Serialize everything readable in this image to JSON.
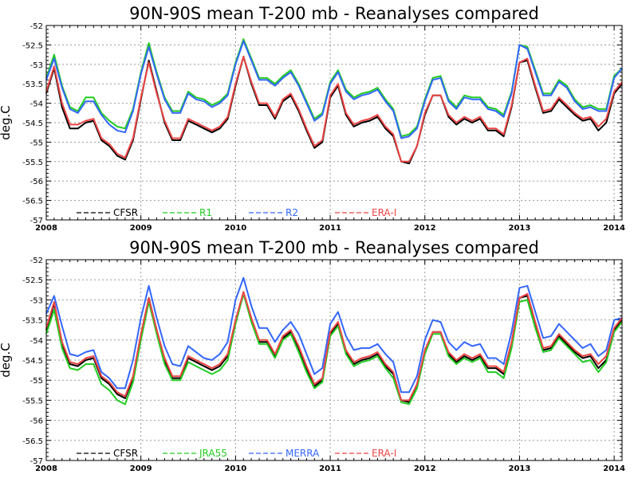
{
  "chart_data": [
    {
      "type": "line",
      "title": "90N-90S mean T-200 mb - Reanalyses compared",
      "xlabel": "",
      "ylabel": "deg.C",
      "xlim": [
        2008.0,
        2014.0833
      ],
      "ylim": [
        -57,
        -52
      ],
      "xticks": [
        "2008",
        "2009",
        "2010",
        "2011",
        "2012",
        "2013",
        "2014"
      ],
      "yticks": [
        "-52",
        "-52.5",
        "-53",
        "-53.5",
        "-54",
        "-54.5",
        "-55",
        "-55.5",
        "-56",
        "-56.5",
        "-57"
      ],
      "grid": true,
      "legend": "bottom-inside",
      "x": [
        2008.0,
        2008.0833,
        2008.1667,
        2008.25,
        2008.3333,
        2008.4167,
        2008.5,
        2008.5833,
        2008.6667,
        2008.75,
        2008.8333,
        2008.9167,
        2009.0,
        2009.0833,
        2009.1667,
        2009.25,
        2009.3333,
        2009.4167,
        2009.5,
        2009.5833,
        2009.6667,
        2009.75,
        2009.8333,
        2009.9167,
        2010.0,
        2010.0833,
        2010.1667,
        2010.25,
        2010.3333,
        2010.4167,
        2010.5,
        2010.5833,
        2010.6667,
        2010.75,
        2010.8333,
        2010.9167,
        2011.0,
        2011.0833,
        2011.1667,
        2011.25,
        2011.3333,
        2011.4167,
        2011.5,
        2011.5833,
        2011.6667,
        2011.75,
        2011.8333,
        2011.9167,
        2012.0,
        2012.0833,
        2012.1667,
        2012.25,
        2012.3333,
        2012.4167,
        2012.5,
        2012.5833,
        2012.6667,
        2012.75,
        2012.8333,
        2012.9167,
        2013.0,
        2013.0833,
        2013.1667,
        2013.25,
        2013.3333,
        2013.4167,
        2013.5,
        2013.5833,
        2013.6667,
        2013.75,
        2013.8333,
        2013.9167,
        2014.0,
        2014.0833
      ],
      "series": [
        {
          "name": "CFSR",
          "color": "#000000",
          "values": [
            -53.75,
            -53.1,
            -54.1,
            -54.65,
            -54.65,
            -54.5,
            -54.45,
            -54.95,
            -55.1,
            -55.35,
            -55.45,
            -54.95,
            -53.9,
            -52.9,
            -53.7,
            -54.5,
            -54.95,
            -54.95,
            -54.45,
            -54.55,
            -54.65,
            -54.75,
            -54.65,
            -54.4,
            -53.55,
            -52.8,
            -53.5,
            -54.05,
            -54.05,
            -54.4,
            -53.95,
            -53.8,
            -54.2,
            -54.7,
            -55.15,
            -55.0,
            -53.85,
            -53.55,
            -54.3,
            -54.6,
            -54.5,
            -54.45,
            -54.35,
            -54.65,
            -54.85,
            -55.5,
            -55.55,
            -55.1,
            -54.3,
            -53.8,
            -53.8,
            -54.35,
            -54.55,
            -54.4,
            -54.5,
            -54.4,
            -54.7,
            -54.7,
            -54.85,
            -54.1,
            -52.95,
            -52.9,
            -53.6,
            -54.25,
            -54.2,
            -53.9,
            -54.1,
            -54.3,
            -54.45,
            -54.4,
            -54.7,
            -54.5,
            -53.75,
            -53.5
          ]
        },
        {
          "name": "R1",
          "color": "#22cc22",
          "values": [
            -53.35,
            -52.75,
            -53.55,
            -54.1,
            -54.2,
            -53.85,
            -53.85,
            -54.25,
            -54.45,
            -54.6,
            -54.65,
            -54.15,
            -53.2,
            -52.45,
            -53.2,
            -53.85,
            -54.2,
            -54.2,
            -53.7,
            -53.85,
            -53.9,
            -54.05,
            -53.95,
            -53.75,
            -52.95,
            -52.35,
            -52.85,
            -53.35,
            -53.35,
            -53.5,
            -53.3,
            -53.15,
            -53.5,
            -53.95,
            -54.4,
            -54.25,
            -53.45,
            -53.15,
            -53.65,
            -53.85,
            -53.75,
            -53.7,
            -53.6,
            -53.9,
            -54.15,
            -54.85,
            -54.8,
            -54.6,
            -53.9,
            -53.35,
            -53.3,
            -53.9,
            -54.1,
            -53.8,
            -53.85,
            -53.85,
            -54.1,
            -54.15,
            -54.3,
            -53.7,
            -52.5,
            -52.55,
            -53.15,
            -53.75,
            -53.75,
            -53.4,
            -53.55,
            -53.9,
            -54.1,
            -54.05,
            -54.15,
            -54.15,
            -53.3,
            -53.1
          ]
        },
        {
          "name": "R2",
          "color": "#3366ff",
          "values": [
            -53.4,
            -52.85,
            -53.6,
            -54.15,
            -54.25,
            -53.95,
            -53.95,
            -54.3,
            -54.55,
            -54.7,
            -54.75,
            -54.2,
            -53.25,
            -52.55,
            -53.25,
            -53.9,
            -54.25,
            -54.25,
            -53.75,
            -53.9,
            -53.95,
            -54.1,
            -54.0,
            -53.8,
            -53.0,
            -52.4,
            -52.9,
            -53.4,
            -53.4,
            -53.55,
            -53.35,
            -53.2,
            -53.55,
            -54.0,
            -54.45,
            -54.3,
            -53.5,
            -53.2,
            -53.7,
            -53.9,
            -53.8,
            -53.75,
            -53.65,
            -53.95,
            -54.2,
            -54.9,
            -54.85,
            -54.65,
            -53.95,
            -53.4,
            -53.35,
            -53.95,
            -54.15,
            -53.85,
            -53.9,
            -53.9,
            -54.15,
            -54.2,
            -54.35,
            -53.75,
            -52.5,
            -52.6,
            -53.2,
            -53.8,
            -53.8,
            -53.45,
            -53.6,
            -53.95,
            -54.15,
            -54.1,
            -54.2,
            -54.2,
            -53.35,
            -53.1
          ]
        },
        {
          "name": "ERA-I",
          "color": "#ee4444",
          "values": [
            -53.7,
            -53.05,
            -54.0,
            -54.55,
            -54.55,
            -54.45,
            -54.4,
            -54.9,
            -55.05,
            -55.3,
            -55.4,
            -54.9,
            -53.85,
            -52.95,
            -53.75,
            -54.45,
            -54.9,
            -54.9,
            -54.4,
            -54.5,
            -54.6,
            -54.7,
            -54.6,
            -54.35,
            -53.5,
            -52.8,
            -53.45,
            -54.0,
            -54.0,
            -54.35,
            -53.9,
            -53.75,
            -54.15,
            -54.65,
            -55.1,
            -54.95,
            -53.8,
            -53.5,
            -54.25,
            -54.55,
            -54.45,
            -54.4,
            -54.3,
            -54.6,
            -54.8,
            -55.5,
            -55.5,
            -55.1,
            -54.25,
            -53.8,
            -53.8,
            -54.3,
            -54.5,
            -54.35,
            -54.45,
            -54.35,
            -54.65,
            -54.65,
            -54.8,
            -54.05,
            -52.95,
            -52.85,
            -53.55,
            -54.2,
            -54.15,
            -53.85,
            -54.05,
            -54.25,
            -54.4,
            -54.35,
            -54.6,
            -54.4,
            -53.7,
            -53.45
          ]
        }
      ]
    },
    {
      "type": "line",
      "title": "90N-90S mean T-200 mb - Reanalyses compared",
      "xlabel": "",
      "ylabel": "deg.C",
      "xlim": [
        2008.0,
        2014.0833
      ],
      "ylim": [
        -57,
        -52
      ],
      "xticks": [
        "2008",
        "2009",
        "2010",
        "2011",
        "2012",
        "2013",
        "2014"
      ],
      "yticks": [
        "-52",
        "-52.5",
        "-53",
        "-53.5",
        "-54",
        "-54.5",
        "-55",
        "-55.5",
        "-56",
        "-56.5",
        "-57"
      ],
      "grid": true,
      "legend": "bottom-inside",
      "x": [
        2008.0,
        2008.0833,
        2008.1667,
        2008.25,
        2008.3333,
        2008.4167,
        2008.5,
        2008.5833,
        2008.6667,
        2008.75,
        2008.8333,
        2008.9167,
        2009.0,
        2009.0833,
        2009.1667,
        2009.25,
        2009.3333,
        2009.4167,
        2009.5,
        2009.5833,
        2009.6667,
        2009.75,
        2009.8333,
        2009.9167,
        2010.0,
        2010.0833,
        2010.1667,
        2010.25,
        2010.3333,
        2010.4167,
        2010.5,
        2010.5833,
        2010.6667,
        2010.75,
        2010.8333,
        2010.9167,
        2011.0,
        2011.0833,
        2011.1667,
        2011.25,
        2011.3333,
        2011.4167,
        2011.5,
        2011.5833,
        2011.6667,
        2011.75,
        2011.8333,
        2011.9167,
        2012.0,
        2012.0833,
        2012.1667,
        2012.25,
        2012.3333,
        2012.4167,
        2012.5,
        2012.5833,
        2012.6667,
        2012.75,
        2012.8333,
        2012.9167,
        2013.0,
        2013.0833,
        2013.1667,
        2013.25,
        2013.3333,
        2013.4167,
        2013.5,
        2013.5833,
        2013.6667,
        2013.75,
        2013.8333,
        2013.9167,
        2014.0,
        2014.0833
      ],
      "series": [
        {
          "name": "CFSR",
          "color": "#000000",
          "values": [
            -53.75,
            -53.1,
            -54.1,
            -54.6,
            -54.65,
            -54.5,
            -54.45,
            -54.95,
            -55.1,
            -55.35,
            -55.45,
            -54.95,
            -53.9,
            -52.95,
            -53.75,
            -54.5,
            -54.95,
            -54.95,
            -54.45,
            -54.55,
            -54.65,
            -54.75,
            -54.65,
            -54.4,
            -53.55,
            -52.85,
            -53.5,
            -54.05,
            -54.05,
            -54.4,
            -53.95,
            -53.8,
            -54.2,
            -54.7,
            -55.15,
            -55.0,
            -53.85,
            -53.6,
            -54.3,
            -54.6,
            -54.5,
            -54.45,
            -54.35,
            -54.65,
            -54.85,
            -55.5,
            -55.55,
            -55.1,
            -54.3,
            -53.8,
            -53.8,
            -54.35,
            -54.55,
            -54.4,
            -54.5,
            -54.4,
            -54.7,
            -54.7,
            -54.85,
            -54.1,
            -52.95,
            -52.9,
            -53.6,
            -54.25,
            -54.2,
            -53.9,
            -54.1,
            -54.3,
            -54.45,
            -54.4,
            -54.7,
            -54.5,
            -53.75,
            -53.5
          ]
        },
        {
          "name": "JRA55",
          "color": "#22cc22",
          "values": [
            -53.85,
            -53.25,
            -54.2,
            -54.7,
            -54.75,
            -54.6,
            -54.6,
            -55.1,
            -55.25,
            -55.5,
            -55.6,
            -55.05,
            -54.0,
            -53.05,
            -53.85,
            -54.6,
            -55.0,
            -55.0,
            -54.55,
            -54.65,
            -54.75,
            -54.85,
            -54.75,
            -54.5,
            -53.6,
            -52.85,
            -53.55,
            -54.1,
            -54.1,
            -54.45,
            -54.0,
            -53.85,
            -54.3,
            -54.8,
            -55.2,
            -55.05,
            -53.9,
            -53.65,
            -54.35,
            -54.65,
            -54.55,
            -54.5,
            -54.4,
            -54.7,
            -54.95,
            -55.55,
            -55.6,
            -55.2,
            -54.35,
            -53.85,
            -53.85,
            -54.4,
            -54.6,
            -54.45,
            -54.55,
            -54.45,
            -54.8,
            -54.8,
            -54.95,
            -54.2,
            -53.05,
            -53.0,
            -53.7,
            -54.3,
            -54.25,
            -53.95,
            -54.15,
            -54.35,
            -54.55,
            -54.5,
            -54.8,
            -54.55,
            -53.8,
            -53.55
          ]
        },
        {
          "name": "MERRA",
          "color": "#3366ff",
          "values": [
            -53.35,
            -52.9,
            -53.65,
            -54.35,
            -54.4,
            -54.3,
            -54.25,
            -54.8,
            -54.95,
            -55.2,
            -55.2,
            -54.5,
            -53.45,
            -52.65,
            -53.45,
            -54.15,
            -54.6,
            -54.65,
            -54.15,
            -54.3,
            -54.45,
            -54.5,
            -54.35,
            -54.05,
            -53.0,
            -52.45,
            -53.15,
            -53.7,
            -53.7,
            -54.05,
            -53.75,
            -53.55,
            -53.85,
            -54.35,
            -54.85,
            -54.7,
            -53.6,
            -53.3,
            -53.9,
            -54.25,
            -54.2,
            -54.2,
            -54.1,
            -54.35,
            -54.55,
            -55.3,
            -55.3,
            -54.9,
            -54.0,
            -53.5,
            -53.55,
            -54.05,
            -54.25,
            -54.05,
            -54.15,
            -54.1,
            -54.45,
            -54.45,
            -54.6,
            -53.8,
            -52.7,
            -52.65,
            -53.3,
            -53.95,
            -53.9,
            -53.6,
            -53.8,
            -54.0,
            -54.2,
            -54.1,
            -54.4,
            -54.25,
            -53.5,
            -53.45
          ]
        },
        {
          "name": "ERA-I",
          "color": "#ee4444",
          "values": [
            -53.7,
            -53.05,
            -54.05,
            -54.55,
            -54.6,
            -54.45,
            -54.4,
            -54.9,
            -55.05,
            -55.3,
            -55.4,
            -54.9,
            -53.85,
            -52.95,
            -53.75,
            -54.45,
            -54.9,
            -54.9,
            -54.4,
            -54.5,
            -54.6,
            -54.7,
            -54.6,
            -54.35,
            -53.5,
            -52.8,
            -53.45,
            -54.0,
            -54.0,
            -54.35,
            -53.9,
            -53.75,
            -54.15,
            -54.65,
            -55.1,
            -54.95,
            -53.8,
            -53.55,
            -54.25,
            -54.55,
            -54.45,
            -54.4,
            -54.3,
            -54.6,
            -54.8,
            -55.5,
            -55.5,
            -55.1,
            -54.25,
            -53.8,
            -53.8,
            -54.3,
            -54.5,
            -54.35,
            -54.45,
            -54.35,
            -54.65,
            -54.65,
            -54.8,
            -54.05,
            -52.95,
            -52.85,
            -53.55,
            -54.2,
            -54.15,
            -53.85,
            -54.05,
            -54.25,
            -54.4,
            -54.35,
            -54.6,
            -54.4,
            -53.7,
            -53.45
          ]
        }
      ]
    }
  ]
}
